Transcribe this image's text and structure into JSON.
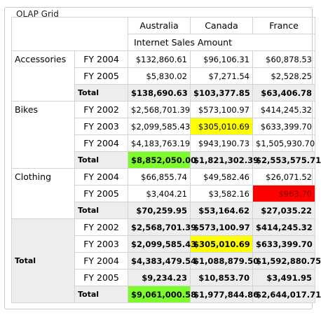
{
  "window": {
    "group_title": "OLAP Grid"
  },
  "columns": [
    "Australia",
    "Canada",
    "France"
  ],
  "measure": "Internet Sales Amount",
  "colors": {
    "green": "#7cfc2a",
    "yellow": "#ffff00",
    "red": "#ff0000",
    "total_bg": "#ededed"
  },
  "groups": [
    {
      "name": "Accessories",
      "rows": [
        {
          "year": "FY 2004",
          "values": [
            "$132,860.61",
            "$96,106.31",
            "$60,878.53"
          ]
        },
        {
          "year": "FY 2005",
          "values": [
            "$5,830.02",
            "$7,271.54",
            "$2,528.25"
          ]
        }
      ],
      "total": {
        "label": "Total",
        "values": [
          "$138,690.63",
          "$103,377.85",
          "$63,406.78"
        ]
      }
    },
    {
      "name": "Bikes",
      "rows": [
        {
          "year": "FY 2002",
          "values": [
            "$2,568,701.39",
            "$573,100.97",
            "$414,245.32"
          ]
        },
        {
          "year": "FY 2003",
          "values": [
            "$2,099,585.43",
            "$305,010.69",
            "$633,399.70"
          ]
        },
        {
          "year": "FY 2004",
          "values": [
            "$4,183,763.19",
            "$943,190.73",
            "$1,505,930.70"
          ]
        }
      ],
      "total": {
        "label": "Total",
        "values": [
          "$8,852,050.00",
          "$1,821,302.39",
          "$2,553,575.71"
        ]
      }
    },
    {
      "name": "Clothing",
      "rows": [
        {
          "year": "FY 2004",
          "values": [
            "$66,855.74",
            "$49,582.46",
            "$26,071.52"
          ]
        },
        {
          "year": "FY 2005",
          "values": [
            "$3,404.21",
            "$3,582.16",
            "$963.70"
          ]
        }
      ],
      "total": {
        "label": "Total",
        "values": [
          "$70,259.95",
          "$53,164.62",
          "$27,035.22"
        ]
      }
    }
  ],
  "grand_total": {
    "name": "Total",
    "rows": [
      {
        "year": "FY 2002",
        "values": [
          "$2,568,701.39",
          "$573,100.97",
          "$414,245.32"
        ]
      },
      {
        "year": "FY 2003",
        "values": [
          "$2,099,585.43",
          "$305,010.69",
          "$633,399.70"
        ]
      },
      {
        "year": "FY 2004",
        "values": [
          "$4,383,479.54",
          "$1,088,879.50",
          "$1,592,880.75"
        ]
      },
      {
        "year": "FY 2005",
        "values": [
          "$9,234.23",
          "$10,853.70",
          "$3,491.95"
        ]
      }
    ],
    "total": {
      "label": "Total",
      "values": [
        "$9,061,000.58",
        "$1,977,844.86",
        "$2,644,017.71"
      ]
    }
  }
}
